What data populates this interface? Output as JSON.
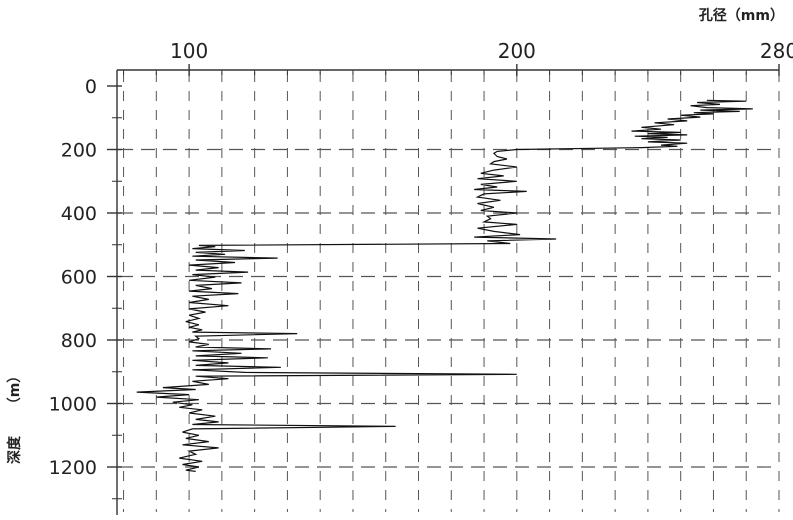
{
  "chart_data": {
    "type": "line",
    "x_unit_label": "孔径（mm）",
    "y_label": "深度",
    "y_unit": "（m）",
    "xlim": [
      78,
      280
    ],
    "ylim": [
      1320,
      0
    ],
    "x_ticks": [
      100,
      200,
      280
    ],
    "y_ticks": [
      0,
      200,
      400,
      600,
      800,
      1000,
      1200
    ],
    "grid": true,
    "series": [
      {
        "points": [
          [
            258,
            45
          ],
          [
            270,
            48
          ],
          [
            255,
            52
          ],
          [
            262,
            58
          ],
          [
            253,
            62
          ],
          [
            258,
            68
          ],
          [
            272,
            72
          ],
          [
            256,
            76
          ],
          [
            268,
            80
          ],
          [
            254,
            84
          ],
          [
            260,
            88
          ],
          [
            250,
            92
          ],
          [
            256,
            98
          ],
          [
            246,
            104
          ],
          [
            252,
            110
          ],
          [
            242,
            116
          ],
          [
            248,
            122
          ],
          [
            238,
            130
          ],
          [
            244,
            136
          ],
          [
            235,
            142
          ],
          [
            250,
            146
          ],
          [
            240,
            150
          ],
          [
            252,
            154
          ],
          [
            236,
            158
          ],
          [
            246,
            162
          ],
          [
            238,
            166
          ],
          [
            250,
            170
          ],
          [
            240,
            176
          ],
          [
            252,
            180
          ],
          [
            244,
            186
          ],
          [
            249,
            190
          ],
          [
            238,
            194
          ],
          [
            200,
            200
          ],
          [
            194,
            206
          ],
          [
            193,
            212
          ],
          [
            194,
            222
          ],
          [
            197,
            230
          ],
          [
            193,
            238
          ],
          [
            192,
            245
          ],
          [
            200,
            255
          ],
          [
            193,
            265
          ],
          [
            189,
            275
          ],
          [
            196,
            283
          ],
          [
            188,
            292
          ],
          [
            200,
            300
          ],
          [
            189,
            310
          ],
          [
            194,
            318
          ],
          [
            187,
            326
          ],
          [
            203,
            332
          ],
          [
            190,
            340
          ],
          [
            188,
            350
          ],
          [
            195,
            360
          ],
          [
            188,
            370
          ],
          [
            193,
            382
          ],
          [
            189,
            392
          ],
          [
            200,
            400
          ],
          [
            191,
            410
          ],
          [
            192,
            418
          ],
          [
            190,
            428
          ],
          [
            200,
            436
          ],
          [
            188,
            448
          ],
          [
            193,
            458
          ],
          [
            201,
            468
          ],
          [
            187,
            476
          ],
          [
            212,
            482
          ],
          [
            191,
            488
          ],
          [
            198,
            496
          ],
          [
            103,
            502
          ],
          [
            108,
            506
          ],
          [
            101,
            512
          ],
          [
            117,
            518
          ],
          [
            102,
            524
          ],
          [
            111,
            530
          ],
          [
            101,
            536
          ],
          [
            127,
            542
          ],
          [
            102,
            548
          ],
          [
            114,
            556
          ],
          [
            100,
            564
          ],
          [
            109,
            572
          ],
          [
            102,
            580
          ],
          [
            118,
            586
          ],
          [
            101,
            594
          ],
          [
            108,
            602
          ],
          [
            100,
            612
          ],
          [
            116,
            620
          ],
          [
            102,
            628
          ],
          [
            107,
            638
          ],
          [
            100,
            646
          ],
          [
            115,
            654
          ],
          [
            101,
            662
          ],
          [
            106,
            672
          ],
          [
            100,
            682
          ],
          [
            112,
            692
          ],
          [
            100,
            702
          ],
          [
            105,
            712
          ],
          [
            100,
            722
          ],
          [
            103,
            732
          ],
          [
            99,
            742
          ],
          [
            103,
            752
          ],
          [
            100,
            760
          ],
          [
            104,
            768
          ],
          [
            101,
            775
          ],
          [
            133,
            780
          ],
          [
            102,
            788
          ],
          [
            103,
            796
          ],
          [
            100,
            806
          ],
          [
            106,
            814
          ],
          [
            102,
            822
          ],
          [
            125,
            828
          ],
          [
            101,
            834
          ],
          [
            116,
            842
          ],
          [
            102,
            850
          ],
          [
            124,
            856
          ],
          [
            101,
            864
          ],
          [
            112,
            872
          ],
          [
            102,
            880
          ],
          [
            128,
            886
          ],
          [
            101,
            894
          ],
          [
            117,
            902
          ],
          [
            200,
            908
          ],
          [
            102,
            914
          ],
          [
            112,
            922
          ],
          [
            101,
            930
          ],
          [
            106,
            940
          ],
          [
            92,
            950
          ],
          [
            102,
            956
          ],
          [
            84,
            964
          ],
          [
            100,
            972
          ],
          [
            90,
            980
          ],
          [
            103,
            988
          ],
          [
            95,
            996
          ],
          [
            101,
            1004
          ],
          [
            97,
            1012
          ],
          [
            104,
            1020
          ],
          [
            100,
            1030
          ],
          [
            108,
            1040
          ],
          [
            102,
            1050
          ],
          [
            109,
            1058
          ],
          [
            101,
            1066
          ],
          [
            163,
            1072
          ],
          [
            101,
            1080
          ],
          [
            98,
            1090
          ],
          [
            103,
            1100
          ],
          [
            99,
            1110
          ],
          [
            106,
            1120
          ],
          [
            98,
            1130
          ],
          [
            109,
            1140
          ],
          [
            100,
            1150
          ],
          [
            102,
            1160
          ],
          [
            97,
            1172
          ],
          [
            104,
            1182
          ],
          [
            98,
            1192
          ],
          [
            103,
            1200
          ],
          [
            99,
            1210
          ],
          [
            102,
            1214
          ]
        ]
      }
    ]
  }
}
